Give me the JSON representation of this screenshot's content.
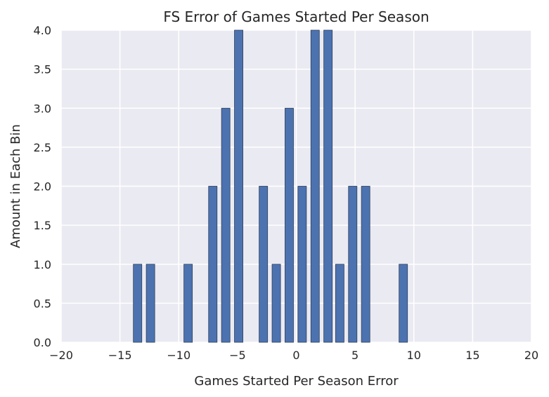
{
  "chart_data": {
    "type": "bar",
    "title": "FS Error of Games Started Per Season",
    "xlabel": "Games Started Per Season Error",
    "ylabel": "Amount in Each Bin",
    "xlim": [
      -20,
      20
    ],
    "ylim": [
      0,
      4.0
    ],
    "xticks": [
      -20,
      -15,
      -10,
      -5,
      0,
      5,
      10,
      15,
      20
    ],
    "xtick_labels": [
      "−20",
      "−15",
      "−10",
      "−5",
      "0",
      "5",
      "10",
      "15",
      "20"
    ],
    "yticks": [
      0,
      0.5,
      1.0,
      1.5,
      2.0,
      2.5,
      3.0,
      3.5,
      4.0
    ],
    "ytick_labels": [
      "0.0",
      "0.5",
      "1.0",
      "1.5",
      "2.0",
      "2.5",
      "3.0",
      "3.5",
      "4.0"
    ],
    "bar_width": 0.72,
    "x": [
      -13.5,
      -12.4,
      -9.2,
      -7.1,
      -6.0,
      -4.9,
      -2.8,
      -1.7,
      -0.6,
      0.5,
      1.6,
      2.7,
      3.7,
      4.8,
      5.9,
      9.1
    ],
    "values": [
      1,
      1,
      1,
      2,
      3,
      4,
      2,
      1,
      3,
      2,
      4,
      4,
      1,
      2,
      2,
      1
    ],
    "grid": true,
    "colors": {
      "bar": "#4c72b0",
      "bar_edge": "#2f3f5a",
      "plot_bg": "#eaeaf2",
      "grid": "#ffffff",
      "text": "#262626"
    }
  }
}
